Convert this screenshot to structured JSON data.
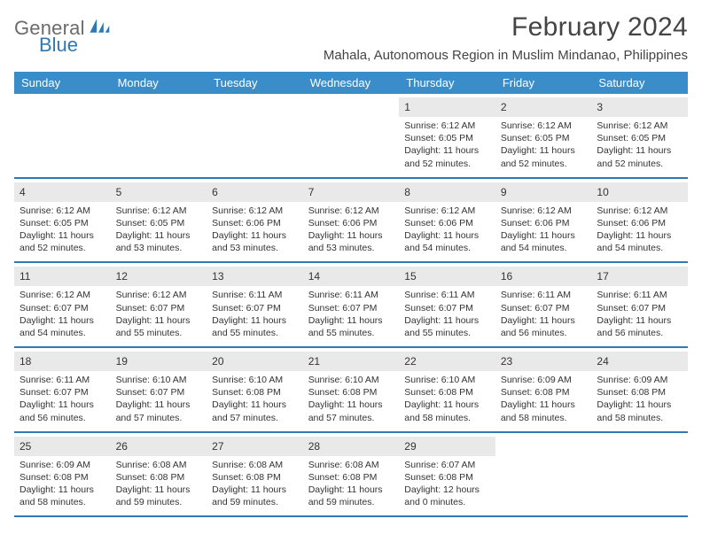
{
  "brand": {
    "text1": "General",
    "text2": "Blue"
  },
  "title": "February 2024",
  "subtitle": "Mahala, Autonomous Region in Muslim Mindanao, Philippines",
  "colors": {
    "header_bg": "#3a8dc9",
    "rule": "#2f78b5",
    "daynum_bg": "#e9e9e9",
    "text": "#333333",
    "brand_gray": "#6b6b6b",
    "brand_blue": "#2f78b5",
    "page_bg": "#ffffff"
  },
  "fonts": {
    "title_size": 30,
    "subtitle_size": 15,
    "dow_size": 13,
    "daynum_size": 12,
    "detail_size": 10.5
  },
  "days_of_week": [
    "Sunday",
    "Monday",
    "Tuesday",
    "Wednesday",
    "Thursday",
    "Friday",
    "Saturday"
  ],
  "weeks": [
    [
      null,
      null,
      null,
      null,
      {
        "n": "1",
        "sr": "Sunrise: 6:12 AM",
        "ss": "Sunset: 6:05 PM",
        "dl1": "Daylight: 11 hours",
        "dl2": "and 52 minutes."
      },
      {
        "n": "2",
        "sr": "Sunrise: 6:12 AM",
        "ss": "Sunset: 6:05 PM",
        "dl1": "Daylight: 11 hours",
        "dl2": "and 52 minutes."
      },
      {
        "n": "3",
        "sr": "Sunrise: 6:12 AM",
        "ss": "Sunset: 6:05 PM",
        "dl1": "Daylight: 11 hours",
        "dl2": "and 52 minutes."
      }
    ],
    [
      {
        "n": "4",
        "sr": "Sunrise: 6:12 AM",
        "ss": "Sunset: 6:05 PM",
        "dl1": "Daylight: 11 hours",
        "dl2": "and 52 minutes."
      },
      {
        "n": "5",
        "sr": "Sunrise: 6:12 AM",
        "ss": "Sunset: 6:05 PM",
        "dl1": "Daylight: 11 hours",
        "dl2": "and 53 minutes."
      },
      {
        "n": "6",
        "sr": "Sunrise: 6:12 AM",
        "ss": "Sunset: 6:06 PM",
        "dl1": "Daylight: 11 hours",
        "dl2": "and 53 minutes."
      },
      {
        "n": "7",
        "sr": "Sunrise: 6:12 AM",
        "ss": "Sunset: 6:06 PM",
        "dl1": "Daylight: 11 hours",
        "dl2": "and 53 minutes."
      },
      {
        "n": "8",
        "sr": "Sunrise: 6:12 AM",
        "ss": "Sunset: 6:06 PM",
        "dl1": "Daylight: 11 hours",
        "dl2": "and 54 minutes."
      },
      {
        "n": "9",
        "sr": "Sunrise: 6:12 AM",
        "ss": "Sunset: 6:06 PM",
        "dl1": "Daylight: 11 hours",
        "dl2": "and 54 minutes."
      },
      {
        "n": "10",
        "sr": "Sunrise: 6:12 AM",
        "ss": "Sunset: 6:06 PM",
        "dl1": "Daylight: 11 hours",
        "dl2": "and 54 minutes."
      }
    ],
    [
      {
        "n": "11",
        "sr": "Sunrise: 6:12 AM",
        "ss": "Sunset: 6:07 PM",
        "dl1": "Daylight: 11 hours",
        "dl2": "and 54 minutes."
      },
      {
        "n": "12",
        "sr": "Sunrise: 6:12 AM",
        "ss": "Sunset: 6:07 PM",
        "dl1": "Daylight: 11 hours",
        "dl2": "and 55 minutes."
      },
      {
        "n": "13",
        "sr": "Sunrise: 6:11 AM",
        "ss": "Sunset: 6:07 PM",
        "dl1": "Daylight: 11 hours",
        "dl2": "and 55 minutes."
      },
      {
        "n": "14",
        "sr": "Sunrise: 6:11 AM",
        "ss": "Sunset: 6:07 PM",
        "dl1": "Daylight: 11 hours",
        "dl2": "and 55 minutes."
      },
      {
        "n": "15",
        "sr": "Sunrise: 6:11 AM",
        "ss": "Sunset: 6:07 PM",
        "dl1": "Daylight: 11 hours",
        "dl2": "and 55 minutes."
      },
      {
        "n": "16",
        "sr": "Sunrise: 6:11 AM",
        "ss": "Sunset: 6:07 PM",
        "dl1": "Daylight: 11 hours",
        "dl2": "and 56 minutes."
      },
      {
        "n": "17",
        "sr": "Sunrise: 6:11 AM",
        "ss": "Sunset: 6:07 PM",
        "dl1": "Daylight: 11 hours",
        "dl2": "and 56 minutes."
      }
    ],
    [
      {
        "n": "18",
        "sr": "Sunrise: 6:11 AM",
        "ss": "Sunset: 6:07 PM",
        "dl1": "Daylight: 11 hours",
        "dl2": "and 56 minutes."
      },
      {
        "n": "19",
        "sr": "Sunrise: 6:10 AM",
        "ss": "Sunset: 6:07 PM",
        "dl1": "Daylight: 11 hours",
        "dl2": "and 57 minutes."
      },
      {
        "n": "20",
        "sr": "Sunrise: 6:10 AM",
        "ss": "Sunset: 6:08 PM",
        "dl1": "Daylight: 11 hours",
        "dl2": "and 57 minutes."
      },
      {
        "n": "21",
        "sr": "Sunrise: 6:10 AM",
        "ss": "Sunset: 6:08 PM",
        "dl1": "Daylight: 11 hours",
        "dl2": "and 57 minutes."
      },
      {
        "n": "22",
        "sr": "Sunrise: 6:10 AM",
        "ss": "Sunset: 6:08 PM",
        "dl1": "Daylight: 11 hours",
        "dl2": "and 58 minutes."
      },
      {
        "n": "23",
        "sr": "Sunrise: 6:09 AM",
        "ss": "Sunset: 6:08 PM",
        "dl1": "Daylight: 11 hours",
        "dl2": "and 58 minutes."
      },
      {
        "n": "24",
        "sr": "Sunrise: 6:09 AM",
        "ss": "Sunset: 6:08 PM",
        "dl1": "Daylight: 11 hours",
        "dl2": "and 58 minutes."
      }
    ],
    [
      {
        "n": "25",
        "sr": "Sunrise: 6:09 AM",
        "ss": "Sunset: 6:08 PM",
        "dl1": "Daylight: 11 hours",
        "dl2": "and 58 minutes."
      },
      {
        "n": "26",
        "sr": "Sunrise: 6:08 AM",
        "ss": "Sunset: 6:08 PM",
        "dl1": "Daylight: 11 hours",
        "dl2": "and 59 minutes."
      },
      {
        "n": "27",
        "sr": "Sunrise: 6:08 AM",
        "ss": "Sunset: 6:08 PM",
        "dl1": "Daylight: 11 hours",
        "dl2": "and 59 minutes."
      },
      {
        "n": "28",
        "sr": "Sunrise: 6:08 AM",
        "ss": "Sunset: 6:08 PM",
        "dl1": "Daylight: 11 hours",
        "dl2": "and 59 minutes."
      },
      {
        "n": "29",
        "sr": "Sunrise: 6:07 AM",
        "ss": "Sunset: 6:08 PM",
        "dl1": "Daylight: 12 hours",
        "dl2": "and 0 minutes."
      },
      null,
      null
    ]
  ]
}
